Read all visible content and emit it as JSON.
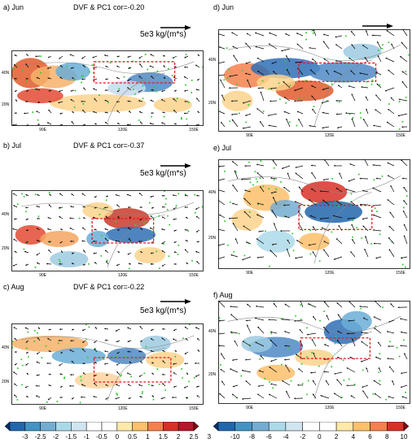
{
  "chart_data": [
    {
      "id": "a",
      "type": "heatmap",
      "title": "a) Jun",
      "subtitle": "DVF & PC1 cor=-0.20",
      "reference_vector": "5e3 kg/(m*s)",
      "lat_ticks": [
        "40N",
        "20N"
      ],
      "lon_ticks": [
        "90E",
        "120E",
        "150E"
      ]
    },
    {
      "id": "b",
      "type": "heatmap",
      "title": "b) Jul",
      "subtitle": "DVF & PC1 cor=-0.37",
      "reference_vector": "5e3 kg/(m*s)",
      "lat_ticks": [
        "40N",
        "20N"
      ],
      "lon_ticks": [
        "90E",
        "120E",
        "150E"
      ]
    },
    {
      "id": "c",
      "type": "heatmap",
      "title": "c) Aug",
      "subtitle": "DVF & PC1 cor=-0.22",
      "reference_vector": "5e3 kg/(m*s)",
      "lat_ticks": [
        "40N",
        "20N"
      ],
      "lon_ticks": [
        "90E",
        "120E",
        "150E"
      ]
    },
    {
      "id": "d",
      "type": "heatmap",
      "title": "d) Jun",
      "subtitle": "",
      "reference_vector": "10e3 kg/(m*s)",
      "lat_ticks": [
        "40N",
        "20N"
      ],
      "lon_ticks": [
        "90E",
        "120E",
        "150E"
      ]
    },
    {
      "id": "e",
      "type": "heatmap",
      "title": "e) Jul",
      "subtitle": "",
      "reference_vector": "10e3 kg/(m*s)",
      "lat_ticks": [
        "40N",
        "20N"
      ],
      "lon_ticks": [
        "90E",
        "120E",
        "150E"
      ]
    },
    {
      "id": "f",
      "type": "heatmap",
      "title": "f) Aug",
      "subtitle": "",
      "reference_vector": "10e3 kg/(m*s)",
      "lat_ticks": [
        "40N",
        "20N"
      ],
      "lon_ticks": [
        "90E",
        "120E",
        "150E"
      ]
    }
  ],
  "colorbars": [
    {
      "id": "left",
      "labels": [
        "-3",
        "-2.5",
        "-2",
        "-1.5",
        "-1",
        "-0.5",
        "0",
        "0.5",
        "1",
        "1.5",
        "2",
        "2.5",
        "3"
      ],
      "colors": [
        "#08306b",
        "#2166ac",
        "#4393c3",
        "#74add1",
        "#abd9e9",
        "#d1e5f0",
        "#ffffff",
        "#ffffff",
        "#fde9a8",
        "#fdc06b",
        "#f4814e",
        "#d73027",
        "#b2182b",
        "#7f0d17"
      ]
    },
    {
      "id": "right",
      "labels": [
        "-10",
        "-8",
        "-6",
        "-4",
        "-2",
        "0",
        "2",
        "4",
        "6",
        "8",
        "10"
      ],
      "colors": [
        "#08306b",
        "#2166ac",
        "#4393c3",
        "#74add1",
        "#abd9e9",
        "#d1e5f0",
        "#ffffff",
        "#ffffff",
        "#fde9a8",
        "#fdc06b",
        "#f4814e",
        "#d73027",
        "#7f0d17"
      ]
    }
  ]
}
